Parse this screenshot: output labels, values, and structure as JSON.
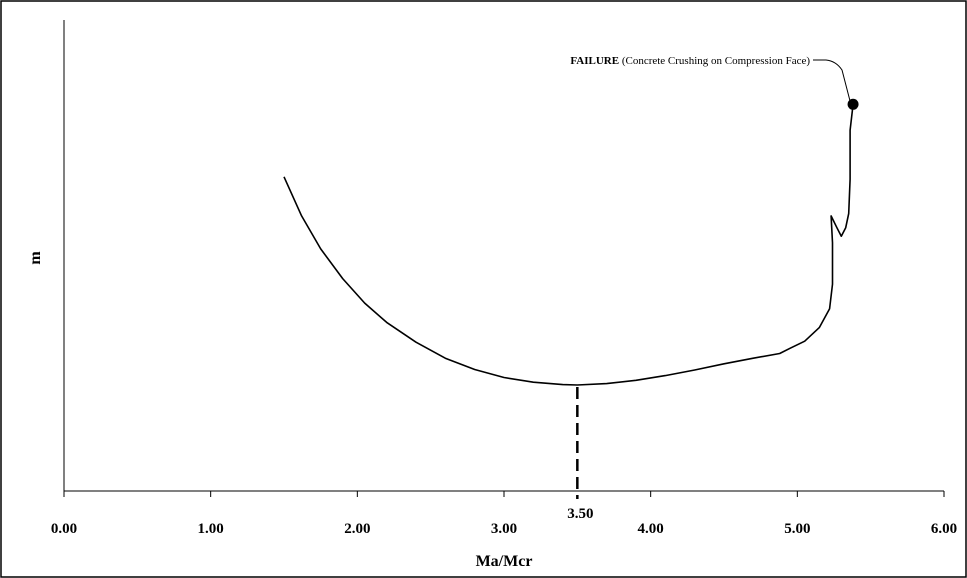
{
  "chart_data": {
    "type": "line",
    "title": "",
    "xlabel": "Ma/Mcr",
    "ylabel": "m",
    "xlim": [
      0,
      6
    ],
    "ylim": [
      0,
      1
    ],
    "x_ticks": [
      0,
      1,
      2,
      3,
      4,
      5,
      6
    ],
    "x_tick_labels": [
      "0.00",
      "1.00",
      "2.00",
      "3.00",
      "4.00",
      "5.00",
      "6.00"
    ],
    "y_ticks_shown": false,
    "grid": false,
    "legend": "none",
    "series": [
      {
        "x": [
          1.5,
          1.62,
          1.75,
          1.9,
          2.05,
          2.2,
          2.4,
          2.6,
          2.8,
          3.0,
          3.2,
          3.4,
          3.5,
          3.7,
          3.9,
          4.1,
          4.3,
          4.5,
          4.7,
          4.88,
          4.95,
          5.05,
          5.15,
          5.22,
          5.24,
          5.24,
          5.23,
          5.27,
          5.3,
          5.33,
          5.35,
          5.36,
          5.36,
          5.38
        ],
        "y": [
          0.667,
          0.584,
          0.514,
          0.451,
          0.399,
          0.358,
          0.316,
          0.282,
          0.258,
          0.241,
          0.231,
          0.226,
          0.225,
          0.228,
          0.235,
          0.245,
          0.257,
          0.27,
          0.282,
          0.292,
          0.303,
          0.318,
          0.347,
          0.387,
          0.439,
          0.527,
          0.584,
          0.559,
          0.541,
          0.559,
          0.589,
          0.662,
          0.766,
          0.821
        ]
      }
    ],
    "marker_line": {
      "x": 3.5,
      "label": "3.50"
    },
    "failure_point": {
      "x": 5.38,
      "y": 0.821
    },
    "annotation": {
      "bold": "FAILURE",
      "text": " (Concrete Crushing on Compression Face)"
    }
  }
}
